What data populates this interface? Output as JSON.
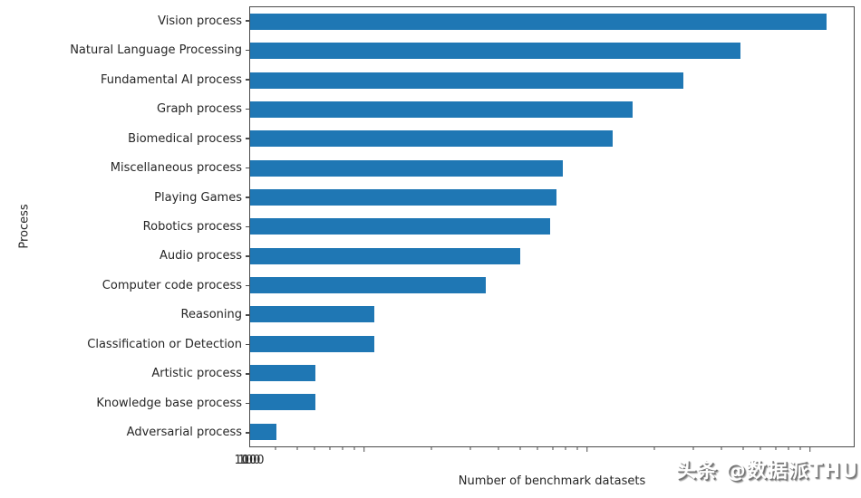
{
  "chart_data": {
    "type": "bar",
    "orientation": "horizontal",
    "title": "",
    "xlabel": "Number of benchmark datasets",
    "ylabel": "Process",
    "x_scale": "log",
    "xlim": [
      3.05,
      1583
    ],
    "x_major_ticks": [
      {
        "value": 10,
        "label": "10"
      },
      {
        "value": 100,
        "label": "100"
      },
      {
        "value": 1000,
        "label": "1000"
      }
    ],
    "x_minor_ticks": [
      4,
      5,
      6,
      7,
      8,
      9,
      20,
      30,
      40,
      50,
      60,
      70,
      80,
      90,
      200,
      300,
      400,
      500,
      600,
      700,
      800,
      900
    ],
    "grid": false,
    "legend": false,
    "categories": [
      "Vision process",
      "Natural Language Processing",
      "Fundamental AI process",
      "Graph process",
      "Biomedical process",
      "Miscellaneous process",
      "Playing Games",
      "Robotics process",
      "Audio process",
      "Computer code process",
      "Reasoning",
      "Classification or Detection",
      "Artistic process",
      "Knowledge base process",
      "Adversarial process"
    ],
    "values": [
      1200,
      490,
      270,
      160,
      130,
      78,
      73,
      68,
      50,
      35,
      11,
      11,
      6,
      6,
      4
    ]
  },
  "colors": {
    "bar": "#1f77b4",
    "spine": "#4a4a4a",
    "text": "#262626",
    "watermark_fill": "#ffffff",
    "watermark_shadow": "#757575"
  },
  "watermark": {
    "text": "头条 @数据派THU"
  }
}
